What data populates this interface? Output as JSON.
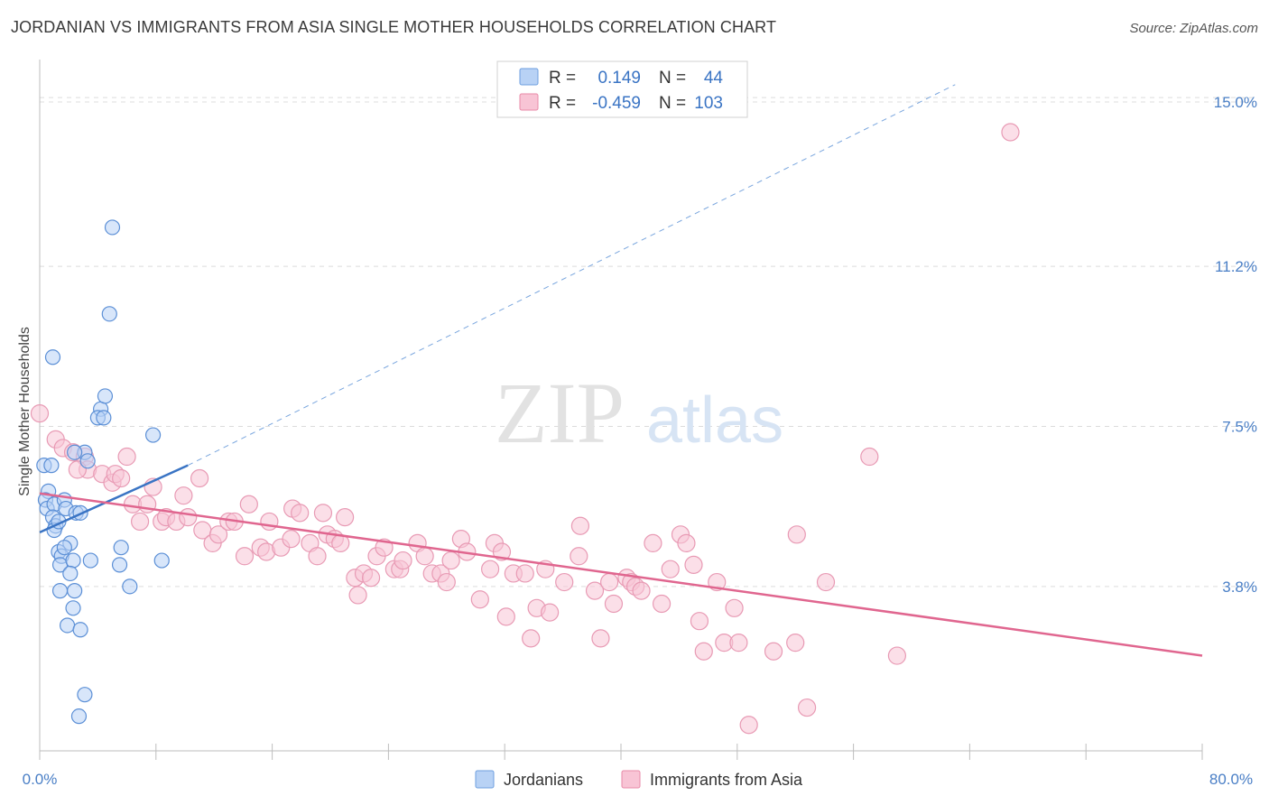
{
  "title": "JORDANIAN VS IMMIGRANTS FROM ASIA SINGLE MOTHER HOUSEHOLDS CORRELATION CHART",
  "source": "Source: ZipAtlas.com",
  "watermark": {
    "zip": "ZIP",
    "atlas": "atlas"
  },
  "colors": {
    "blue": "#5b8fd6",
    "blue_fill": "#b8d2f5",
    "pink": "#e0668f",
    "pink_fill": "#f8c4d5",
    "axis_label": "#4a7fc6",
    "grid": "#dcdcdc"
  },
  "stats": {
    "r_label": "R =",
    "n_label": "N =",
    "rows": [
      {
        "r": "0.149",
        "n": "44"
      },
      {
        "r": "-0.459",
        "n": "103"
      }
    ]
  },
  "chart_data": {
    "type": "scatter",
    "title": "JORDANIAN VS IMMIGRANTS FROM ASIA SINGLE MOTHER HOUSEHOLDS CORRELATION CHART",
    "xlabel": "",
    "ylabel": "Single Mother Households",
    "xlim": [
      0,
      80
    ],
    "ylim": [
      0,
      16
    ],
    "x_tick_labels": [
      "0.0%",
      "80.0%"
    ],
    "y_ticks": [
      3.8,
      7.5,
      11.2,
      15.0
    ],
    "y_tick_labels": [
      "3.8%",
      "7.5%",
      "11.2%",
      "15.0%"
    ],
    "legend_placement": "bottom-center",
    "series": [
      {
        "name": "Jordanians",
        "color": "#5b8fd6",
        "trend": {
          "x": [
            0,
            10.2
          ],
          "y": [
            5.05,
            6.6
          ],
          "extend_dashed_to": [
            63,
            15.4
          ]
        },
        "points": [
          [
            0.3,
            6.6
          ],
          [
            0.6,
            6.0
          ],
          [
            0.4,
            5.8
          ],
          [
            0.5,
            5.6
          ],
          [
            0.8,
            6.6
          ],
          [
            1.0,
            5.7
          ],
          [
            0.9,
            5.4
          ],
          [
            1.1,
            5.2
          ],
          [
            1.0,
            5.1
          ],
          [
            1.3,
            5.3
          ],
          [
            1.7,
            5.8
          ],
          [
            1.8,
            5.6
          ],
          [
            2.5,
            5.5
          ],
          [
            2.8,
            5.5
          ],
          [
            2.1,
            4.8
          ],
          [
            1.3,
            4.6
          ],
          [
            1.5,
            4.5
          ],
          [
            1.4,
            4.3
          ],
          [
            1.7,
            4.7
          ],
          [
            2.3,
            4.4
          ],
          [
            3.5,
            4.4
          ],
          [
            2.1,
            4.1
          ],
          [
            1.4,
            3.7
          ],
          [
            2.4,
            3.7
          ],
          [
            2.3,
            3.3
          ],
          [
            1.9,
            2.9
          ],
          [
            2.8,
            2.8
          ],
          [
            5.6,
            4.7
          ],
          [
            5.5,
            4.3
          ],
          [
            6.2,
            3.8
          ],
          [
            8.4,
            4.4
          ],
          [
            0.9,
            9.1
          ],
          [
            4.2,
            7.9
          ],
          [
            4.0,
            7.7
          ],
          [
            4.4,
            7.7
          ],
          [
            4.5,
            8.2
          ],
          [
            4.8,
            10.1
          ],
          [
            5.0,
            12.1
          ],
          [
            7.8,
            7.3
          ],
          [
            3.1,
            6.9
          ],
          [
            3.3,
            6.7
          ],
          [
            3.1,
            1.3
          ],
          [
            2.7,
            0.8
          ],
          [
            2.4,
            6.9
          ]
        ]
      },
      {
        "name": "Immigrants from Asia",
        "color": "#e0668f",
        "trend": {
          "x": [
            0,
            80
          ],
          "y": [
            5.95,
            2.2
          ]
        },
        "points": [
          [
            0.0,
            7.8
          ],
          [
            1.1,
            7.2
          ],
          [
            1.6,
            7.0
          ],
          [
            2.3,
            6.9
          ],
          [
            3.1,
            6.8
          ],
          [
            3.3,
            6.5
          ],
          [
            4.3,
            6.4
          ],
          [
            5.0,
            6.2
          ],
          [
            5.2,
            6.4
          ],
          [
            5.6,
            6.3
          ],
          [
            6.0,
            6.8
          ],
          [
            7.8,
            6.1
          ],
          [
            11.0,
            6.3
          ],
          [
            9.9,
            5.9
          ],
          [
            6.4,
            5.7
          ],
          [
            7.4,
            5.7
          ],
          [
            6.9,
            5.3
          ],
          [
            8.4,
            5.3
          ],
          [
            8.7,
            5.4
          ],
          [
            9.4,
            5.3
          ],
          [
            10.2,
            5.4
          ],
          [
            11.2,
            5.1
          ],
          [
            11.9,
            4.8
          ],
          [
            12.3,
            5.0
          ],
          [
            13.0,
            5.3
          ],
          [
            13.4,
            5.3
          ],
          [
            14.1,
            4.5
          ],
          [
            14.4,
            5.7
          ],
          [
            15.2,
            4.7
          ],
          [
            15.6,
            4.6
          ],
          [
            15.8,
            5.3
          ],
          [
            16.6,
            4.7
          ],
          [
            17.3,
            4.9
          ],
          [
            17.4,
            5.6
          ],
          [
            17.9,
            5.5
          ],
          [
            18.6,
            4.8
          ],
          [
            19.1,
            4.5
          ],
          [
            19.5,
            5.5
          ],
          [
            19.8,
            5.0
          ],
          [
            20.3,
            4.9
          ],
          [
            20.7,
            4.8
          ],
          [
            21.0,
            5.4
          ],
          [
            21.7,
            4.0
          ],
          [
            21.9,
            3.6
          ],
          [
            22.3,
            4.1
          ],
          [
            22.8,
            4.0
          ],
          [
            23.2,
            4.5
          ],
          [
            23.7,
            4.7
          ],
          [
            24.4,
            4.2
          ],
          [
            24.8,
            4.2
          ],
          [
            25.0,
            4.4
          ],
          [
            26.0,
            4.8
          ],
          [
            26.5,
            4.5
          ],
          [
            27.0,
            4.1
          ],
          [
            27.6,
            4.1
          ],
          [
            28.0,
            3.9
          ],
          [
            28.3,
            4.4
          ],
          [
            29.0,
            4.9
          ],
          [
            29.4,
            4.6
          ],
          [
            30.3,
            3.5
          ],
          [
            31.0,
            4.2
          ],
          [
            31.3,
            4.8
          ],
          [
            31.8,
            4.6
          ],
          [
            32.1,
            3.1
          ],
          [
            32.6,
            4.1
          ],
          [
            33.4,
            4.1
          ],
          [
            33.8,
            2.6
          ],
          [
            34.2,
            3.3
          ],
          [
            34.8,
            4.2
          ],
          [
            35.1,
            3.2
          ],
          [
            36.1,
            3.9
          ],
          [
            37.1,
            4.5
          ],
          [
            37.2,
            5.2
          ],
          [
            38.2,
            3.7
          ],
          [
            38.6,
            2.6
          ],
          [
            39.2,
            3.9
          ],
          [
            39.5,
            3.4
          ],
          [
            40.4,
            4.0
          ],
          [
            40.7,
            3.9
          ],
          [
            41.0,
            3.8
          ],
          [
            41.4,
            3.7
          ],
          [
            42.2,
            4.8
          ],
          [
            42.8,
            3.4
          ],
          [
            43.4,
            4.2
          ],
          [
            44.1,
            5.0
          ],
          [
            44.5,
            4.8
          ],
          [
            45.0,
            4.3
          ],
          [
            45.4,
            3.0
          ],
          [
            45.7,
            2.3
          ],
          [
            46.6,
            3.9
          ],
          [
            47.1,
            2.5
          ],
          [
            47.8,
            3.3
          ],
          [
            48.1,
            2.5
          ],
          [
            48.8,
            0.6
          ],
          [
            50.5,
            2.3
          ],
          [
            52.0,
            2.5
          ],
          [
            52.1,
            5.0
          ],
          [
            52.8,
            1.0
          ],
          [
            54.1,
            3.9
          ],
          [
            57.1,
            6.8
          ],
          [
            59.0,
            2.2
          ],
          [
            66.8,
            14.3
          ],
          [
            2.6,
            6.5
          ]
        ]
      }
    ]
  }
}
